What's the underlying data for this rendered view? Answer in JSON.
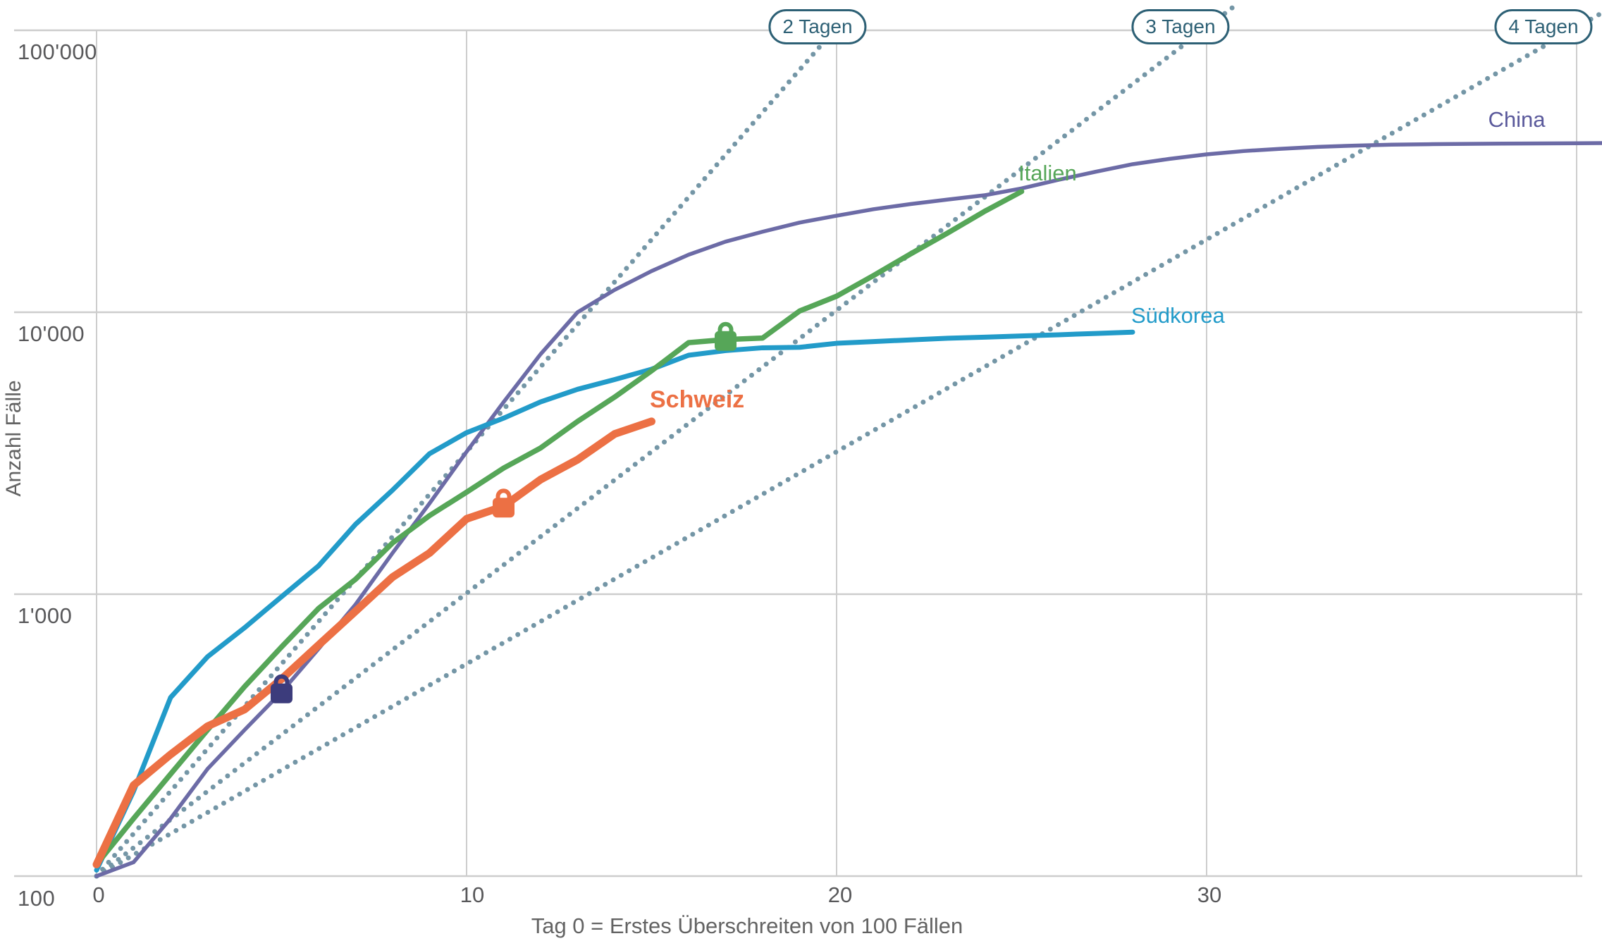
{
  "chart_data": {
    "type": "line",
    "xlabel": "Tag 0 = Erstes Überschreiten von 100 Fällen",
    "ylabel": "Anzahl Fälle",
    "x_tick_labels": [
      "0",
      "10",
      "20",
      "30"
    ],
    "y_tick_labels": [
      "100'000",
      "10'000",
      "1'000",
      "100"
    ],
    "x_range_days": [
      0,
      40.7
    ],
    "y_log_range": [
      100,
      100000
    ],
    "grid_color": "#cdcdcd",
    "guide_color": "#7496a6",
    "badge_color": "#2d6075",
    "guide_lines": [
      {
        "label": "2 Tagen",
        "doubling_days": 2
      },
      {
        "label": "3 Tagen",
        "doubling_days": 3
      },
      {
        "label": "4 Tagen",
        "doubling_days": 4
      }
    ],
    "series": [
      {
        "name": "China",
        "color": "#6c6ba6",
        "width": 5.5,
        "lock_color": "#3c3c7c",
        "lockdown_marker": {
          "day": 5,
          "cases": 450
        },
        "points": [
          [
            0,
            100
          ],
          [
            1,
            112
          ],
          [
            2,
            160
          ],
          [
            3,
            240
          ],
          [
            4,
            330
          ],
          [
            5,
            450
          ],
          [
            6,
            640
          ],
          [
            7,
            920
          ],
          [
            8,
            1400
          ],
          [
            9,
            2100
          ],
          [
            10,
            3200
          ],
          [
            11,
            4800
          ],
          [
            12,
            7100
          ],
          [
            13,
            10000
          ],
          [
            14,
            12000
          ],
          [
            15,
            14000
          ],
          [
            16,
            16000
          ],
          [
            17,
            17800
          ],
          [
            18,
            19300
          ],
          [
            19,
            20800
          ],
          [
            20,
            22000
          ],
          [
            21,
            23200
          ],
          [
            22,
            24200
          ],
          [
            23,
            25100
          ],
          [
            24,
            26000
          ],
          [
            25,
            27500
          ],
          [
            26,
            29500
          ],
          [
            27,
            31500
          ],
          [
            28,
            33500
          ],
          [
            29,
            35000
          ],
          [
            30,
            36300
          ],
          [
            31,
            37300
          ],
          [
            32,
            38000
          ],
          [
            33,
            38600
          ],
          [
            34,
            39000
          ],
          [
            35,
            39300
          ],
          [
            36,
            39450
          ],
          [
            37,
            39550
          ],
          [
            38,
            39650
          ],
          [
            39,
            39700
          ],
          [
            40,
            39750
          ],
          [
            40.7,
            39800
          ]
        ]
      },
      {
        "name": "Südkorea",
        "color": "#229bc9",
        "width": 7,
        "points": [
          [
            0,
            105
          ],
          [
            1,
            200
          ],
          [
            2,
            430
          ],
          [
            3,
            600
          ],
          [
            4,
            760
          ],
          [
            5,
            980
          ],
          [
            6,
            1260
          ],
          [
            7,
            1770
          ],
          [
            8,
            2340
          ],
          [
            9,
            3150
          ],
          [
            10,
            3740
          ],
          [
            11,
            4210
          ],
          [
            12,
            4810
          ],
          [
            13,
            5330
          ],
          [
            14,
            5770
          ],
          [
            15,
            6280
          ],
          [
            16,
            7040
          ],
          [
            17,
            7310
          ],
          [
            18,
            7480
          ],
          [
            19,
            7510
          ],
          [
            20,
            7760
          ],
          [
            21,
            7870
          ],
          [
            22,
            7980
          ],
          [
            23,
            8090
          ],
          [
            24,
            8160
          ],
          [
            25,
            8240
          ],
          [
            26,
            8320
          ],
          [
            27,
            8410
          ],
          [
            28,
            8500
          ]
        ]
      },
      {
        "name": "Italien",
        "color": "#56a658",
        "width": 7.5,
        "lockdown_marker": {
          "day": 17,
          "cases": 8000
        },
        "points": [
          [
            0,
            110
          ],
          [
            1,
            160
          ],
          [
            2,
            230
          ],
          [
            3,
            330
          ],
          [
            4,
            470
          ],
          [
            5,
            650
          ],
          [
            6,
            890
          ],
          [
            7,
            1130
          ],
          [
            8,
            1520
          ],
          [
            9,
            1900
          ],
          [
            10,
            2300
          ],
          [
            11,
            2800
          ],
          [
            12,
            3300
          ],
          [
            13,
            4100
          ],
          [
            14,
            5000
          ],
          [
            15,
            6200
          ],
          [
            16,
            7800
          ],
          [
            17,
            8000
          ],
          [
            18,
            8100
          ],
          [
            19,
            10100
          ],
          [
            20,
            11400
          ],
          [
            21,
            13500
          ],
          [
            22,
            16100
          ],
          [
            23,
            19100
          ],
          [
            24,
            22800
          ],
          [
            25,
            26800
          ]
        ]
      },
      {
        "name": "Schweiz",
        "color": "#ec7044",
        "width": 11,
        "lockdown_marker": {
          "day": 11,
          "cases": 2050
        },
        "points": [
          [
            0,
            110
          ],
          [
            1,
            210
          ],
          [
            2,
            270
          ],
          [
            3,
            340
          ],
          [
            4,
            390
          ],
          [
            5,
            500
          ],
          [
            6,
            660
          ],
          [
            7,
            870
          ],
          [
            8,
            1150
          ],
          [
            9,
            1400
          ],
          [
            10,
            1850
          ],
          [
            11,
            2050
          ],
          [
            12,
            2550
          ],
          [
            13,
            3000
          ],
          [
            14,
            3700
          ],
          [
            15,
            4100
          ]
        ]
      }
    ]
  }
}
